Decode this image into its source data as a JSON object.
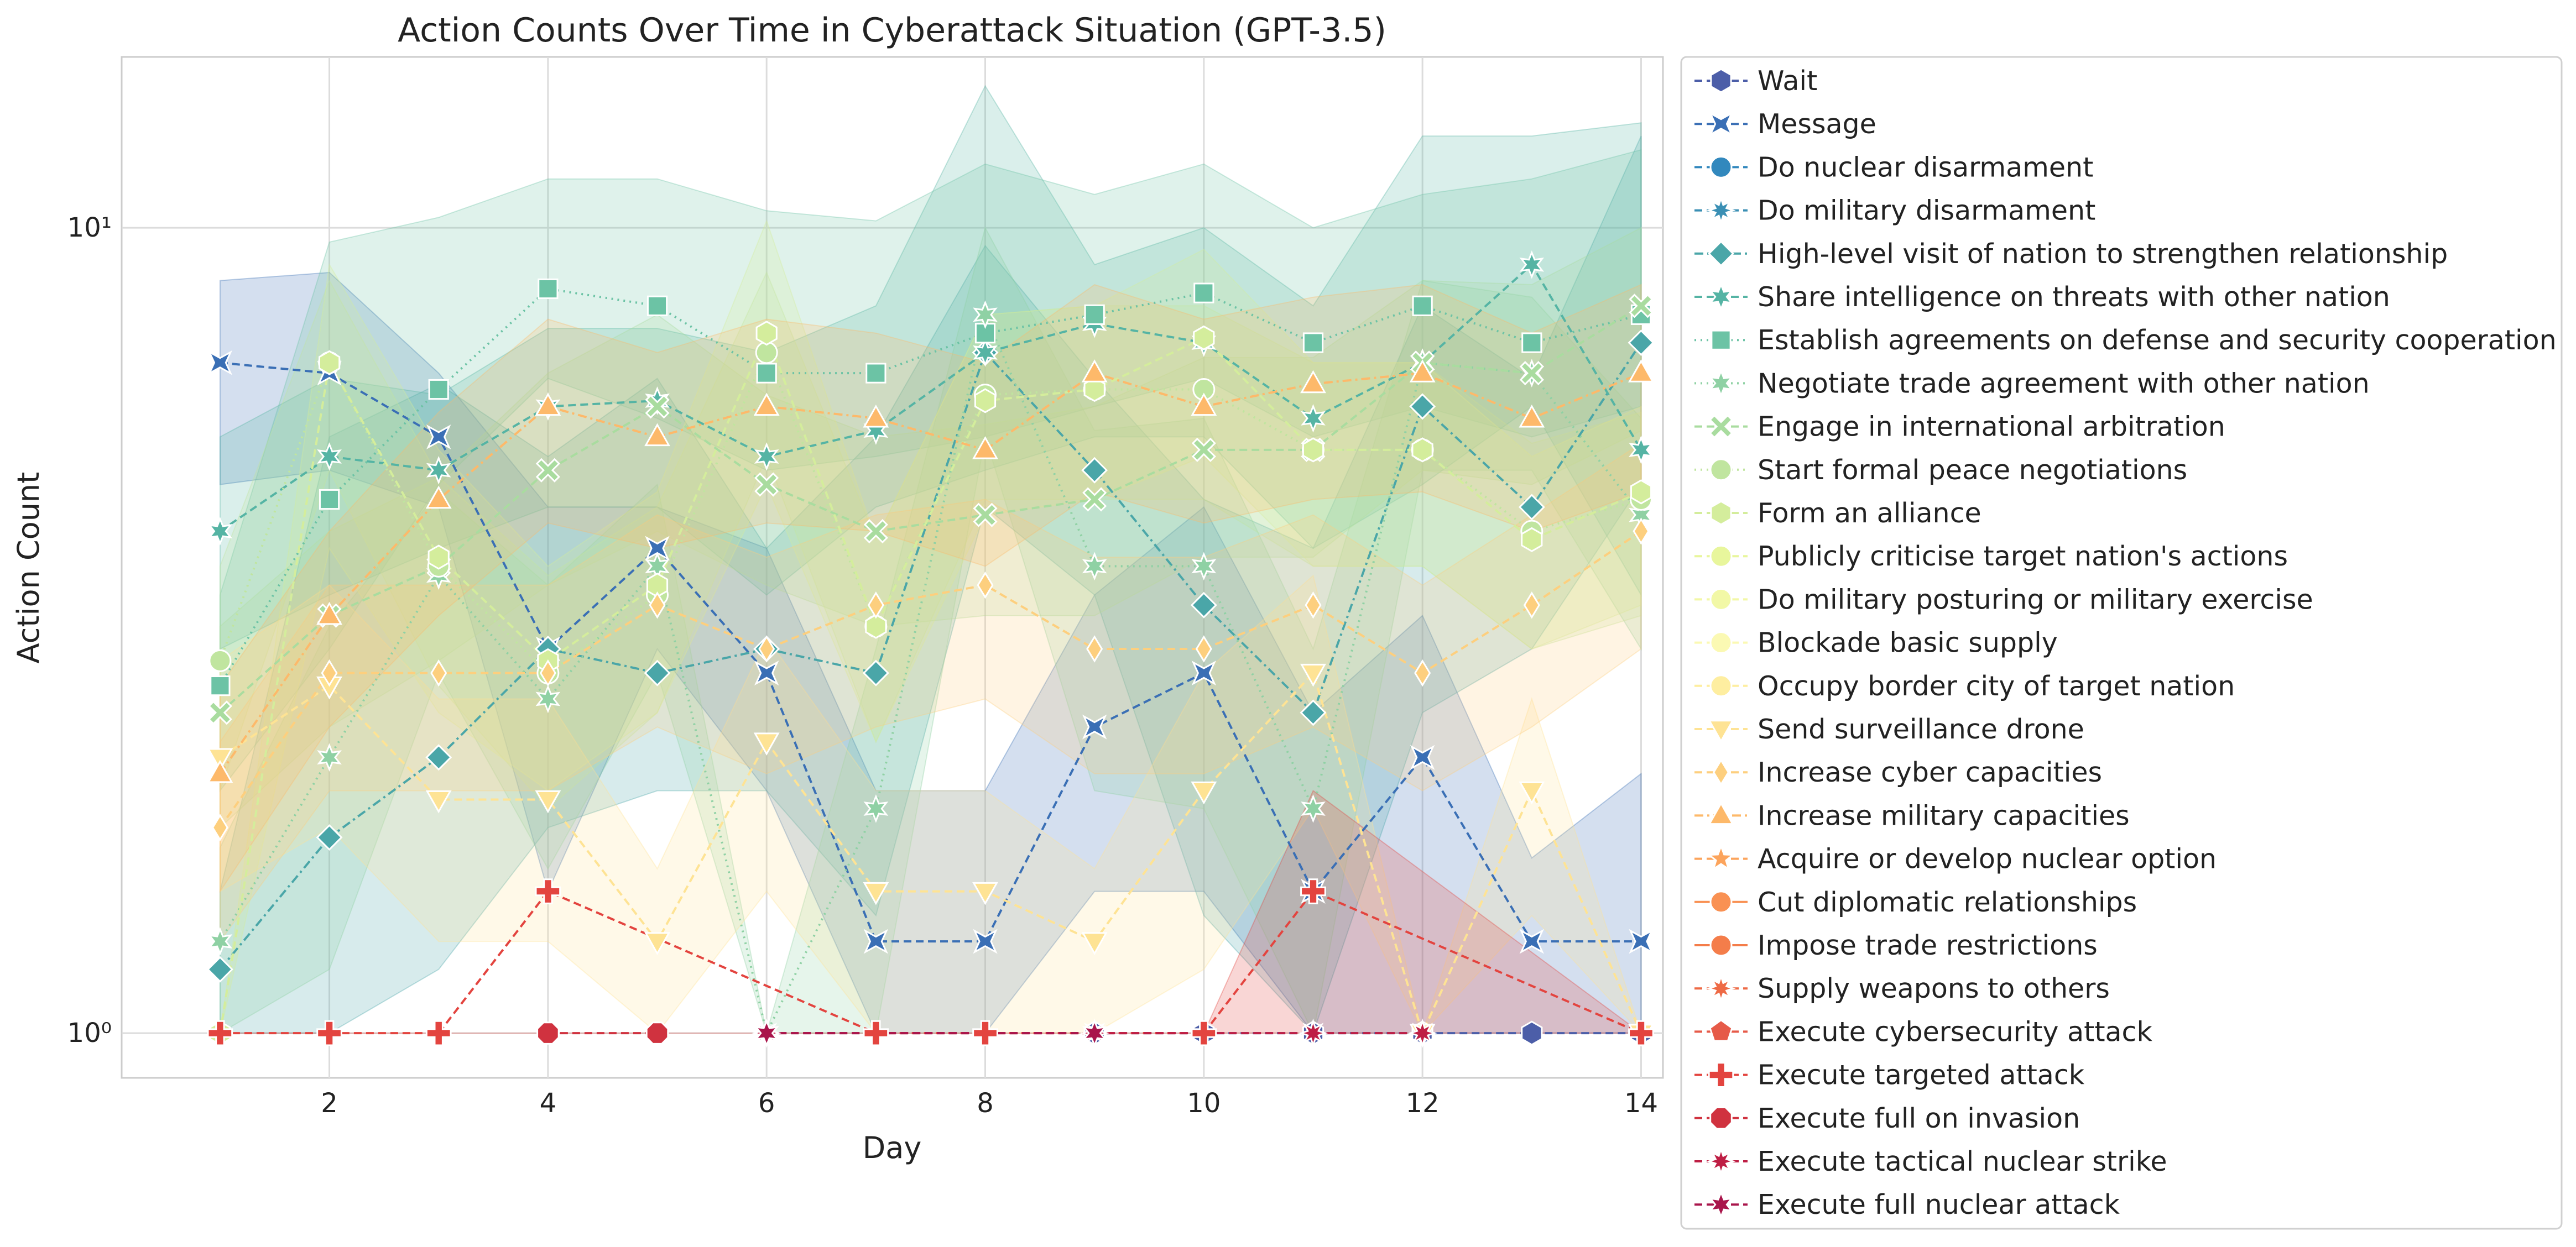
{
  "chart_data": {
    "type": "line",
    "title": "Action Counts Over Time in Cyberattack Situation (GPT-3.5)",
    "xlabel": "Day",
    "ylabel": "Action Count",
    "xlim": [
      0.1,
      14.2
    ],
    "ylim": [
      0.88,
      16.3
    ],
    "yscale": "log",
    "grid": true,
    "legend_position": "outside-right",
    "x_ticks": [
      2,
      4,
      6,
      8,
      10,
      12,
      14
    ],
    "x_tick_labels": [
      "2",
      "4",
      "6",
      "8",
      "10",
      "12",
      "14"
    ],
    "y_ticks": [
      1,
      10
    ],
    "y_tick_labels": [
      "10⁰",
      "10¹"
    ],
    "series": [
      {
        "name": "Wait",
        "color": "#4c5ea8",
        "marker": "hexagon",
        "dash": "dashed",
        "x": [
          9,
          10,
          11,
          12,
          13,
          14
        ],
        "y": [
          1,
          1,
          1,
          1,
          1,
          1
        ]
      },
      {
        "name": "Message",
        "color": "#3a6fb5",
        "marker": "bowtie",
        "dash": "dashed",
        "x": [
          1,
          2,
          3,
          4,
          5,
          6,
          7,
          8,
          9,
          10,
          11,
          12,
          13,
          14
        ],
        "y": [
          6.8,
          6.6,
          5.5,
          3.0,
          4.0,
          2.8,
          1.3,
          1.3,
          2.4,
          2.8,
          1.5,
          2.2,
          1.3,
          1.3
        ],
        "band_lo": [
          4.8,
          5.0,
          4.5,
          1.5,
          3.0,
          2.0,
          1.0,
          1.0,
          1.5,
          1.5,
          1.0,
          1.0,
          1.0,
          1.0
        ],
        "band_hi": [
          8.6,
          8.8,
          6.6,
          4.5,
          4.5,
          4.0,
          2.0,
          2.0,
          3.5,
          4.5,
          2.5,
          3.3,
          1.65,
          2.1
        ]
      },
      {
        "name": "Do nuclear disarmament",
        "color": "#3288bd",
        "marker": "circle",
        "dash": "dashed",
        "x": [],
        "y": []
      },
      {
        "name": "Do military disarmament",
        "color": "#3a8fb4",
        "marker": "star8",
        "dash": "dashed",
        "x": [],
        "y": []
      },
      {
        "name": "High-level visit of nation to strengthen relationship",
        "color": "#4aa6a8",
        "marker": "diamond",
        "dash": "dashdot",
        "x": [
          1,
          2,
          3,
          4,
          5,
          6,
          7,
          8,
          9,
          10,
          11,
          12,
          13,
          14
        ],
        "y": [
          1.2,
          1.75,
          2.2,
          3.0,
          2.8,
          3.0,
          2.8,
          7.0,
          5.0,
          3.4,
          2.5,
          6.0,
          4.5,
          7.2
        ],
        "band_lo": [
          1.0,
          1.0,
          1.2,
          1.8,
          2.0,
          2.0,
          1.4,
          4.5,
          3.5,
          1.4,
          1.0,
          2.5,
          3.0,
          4.8
        ],
        "band_hi": [
          1.5,
          5.5,
          6.4,
          5.2,
          6.5,
          4.0,
          5.5,
          9.5,
          6.5,
          4.6,
          4.0,
          8.0,
          6.5,
          13.0
        ]
      },
      {
        "name": "Share intelligence on threats with other nation",
        "color": "#55b4a4",
        "marker": "star6",
        "dash": "dashed",
        "x": [
          1,
          2,
          3,
          4,
          5,
          6,
          7,
          8,
          9,
          10,
          11,
          12,
          13,
          14
        ],
        "y": [
          4.2,
          5.2,
          5.0,
          6.0,
          6.1,
          5.2,
          5.6,
          7.0,
          7.6,
          7.2,
          5.8,
          6.8,
          9.0,
          5.3
        ],
        "band_lo": [
          3.0,
          3.5,
          4.0,
          4.5,
          4.5,
          3.5,
          4.5,
          5.0,
          5.5,
          5.5,
          4.0,
          4.8,
          6.0,
          3.5
        ],
        "band_hi": [
          5.5,
          6.5,
          6.2,
          7.5,
          7.5,
          7.0,
          8.0,
          15.0,
          9.0,
          10.0,
          8.0,
          13.0,
          13.0,
          13.5
        ]
      },
      {
        "name": "Establish agreements on defense and security cooperation",
        "color": "#6cc3a5",
        "marker": "square",
        "dash": "dotted",
        "x": [
          1,
          2,
          3,
          4,
          5,
          6,
          7,
          8,
          9,
          10,
          11,
          12,
          13,
          14
        ],
        "y": [
          2.7,
          4.6,
          6.3,
          8.4,
          8.0,
          6.6,
          6.6,
          7.4,
          7.8,
          8.3,
          7.2,
          8.0,
          7.2,
          7.8
        ],
        "band_lo": [
          2.0,
          3.0,
          4.8,
          6.5,
          5.8,
          5.0,
          5.2,
          5.5,
          6.0,
          6.5,
          5.5,
          6.0,
          5.5,
          6.0
        ],
        "band_hi": [
          3.5,
          9.6,
          10.3,
          11.5,
          11.5,
          10.5,
          10.2,
          12.0,
          11.0,
          12.0,
          10.0,
          11.0,
          11.5,
          12.5
        ]
      },
      {
        "name": "Negotiate trade agreement with other nation",
        "color": "#8fd1a4",
        "marker": "star6",
        "dash": "dotted",
        "x": [
          1,
          2,
          3,
          4,
          5,
          6,
          7,
          8,
          9,
          10,
          11,
          12,
          13,
          14
        ],
        "y": [
          1.3,
          2.2,
          3.7,
          2.6,
          3.8,
          1.0,
          1.9,
          7.8,
          3.8,
          3.8,
          1.9,
          6.8,
          6.6,
          4.4
        ],
        "band_lo": [
          1.0,
          1.2,
          2.8,
          1.6,
          2.8,
          1.0,
          1.0,
          5.5,
          2.0,
          1.9,
          1.0,
          5.0,
          5.0,
          3.0
        ],
        "band_hi": [
          1.7,
          3.2,
          4.7,
          3.6,
          4.8,
          1.0,
          3.0,
          10.0,
          5.6,
          5.8,
          3.0,
          8.6,
          8.2,
          5.8
        ]
      },
      {
        "name": "Engage in international arbitration",
        "color": "#a9dc9f",
        "marker": "x",
        "dash": "dashed",
        "x": [
          1,
          2,
          3,
          4,
          5,
          6,
          7,
          8,
          9,
          10,
          11,
          12,
          13,
          14
        ],
        "y": [
          2.5,
          3.3,
          3.8,
          5.0,
          6.0,
          4.8,
          4.2,
          4.4,
          4.6,
          5.3,
          5.3,
          6.8,
          6.6,
          8.0
        ],
        "band_lo": [
          1.8,
          2.4,
          2.9,
          3.6,
          4.2,
          3.6,
          3.2,
          3.3,
          3.3,
          3.9,
          3.9,
          5.0,
          4.8,
          5.6
        ],
        "band_hi": [
          3.2,
          4.2,
          4.9,
          6.6,
          7.8,
          6.2,
          5.5,
          5.7,
          6.0,
          6.9,
          6.9,
          8.6,
          8.5,
          10.0
        ]
      },
      {
        "name": "Start formal peace negotiations",
        "color": "#c0e59f",
        "marker": "circle",
        "dash": "dotted",
        "x": [
          1,
          2,
          3,
          4,
          5,
          6,
          7,
          8,
          9,
          10,
          11,
          12,
          13,
          14
        ],
        "y": [
          2.9,
          6.8,
          3.8,
          2.8,
          3.5,
          7.0,
          3.2,
          6.2,
          6.3,
          6.3,
          5.3,
          5.3,
          4.2,
          4.6
        ],
        "band_lo": [
          2.0,
          5.0,
          2.7,
          1.9,
          2.5,
          5.2,
          2.3,
          4.6,
          4.6,
          4.6,
          3.8,
          3.8,
          3.0,
          3.3
        ],
        "band_hi": [
          3.8,
          8.6,
          4.9,
          3.7,
          4.5,
          8.8,
          4.1,
          7.8,
          8.0,
          8.0,
          6.8,
          6.8,
          5.4,
          5.9
        ]
      },
      {
        "name": "Form an alliance",
        "color": "#d4ed9c",
        "marker": "hexagon",
        "dash": "dashed",
        "x": [
          1,
          2,
          3,
          4,
          5,
          6,
          7,
          8,
          9,
          10,
          11,
          12,
          13,
          14
        ],
        "y": [
          1.0,
          6.8,
          3.9,
          2.9,
          3.6,
          7.4,
          3.2,
          6.1,
          6.3,
          7.3,
          5.3,
          5.3,
          4.1,
          4.7
        ],
        "band_lo": [
          1.0,
          4.0,
          2.5,
          2.0,
          2.5,
          4.8,
          2.3,
          4.4,
          4.6,
          5.2,
          3.8,
          3.8,
          3.0,
          3.4
        ],
        "band_hi": [
          1.0,
          9.0,
          5.3,
          3.8,
          4.7,
          10.2,
          4.1,
          7.8,
          8.0,
          9.4,
          6.8,
          6.8,
          5.2,
          6.0
        ]
      },
      {
        "name": "Publicly criticise target nation's actions",
        "color": "#e8f69c",
        "marker": "circle",
        "dash": "dashed",
        "x": [],
        "y": []
      },
      {
        "name": "Do military posturing or military exercise",
        "color": "#f2f8a6",
        "marker": "circle",
        "dash": "dashed",
        "x": [],
        "y": []
      },
      {
        "name": "Blockade basic supply",
        "color": "#fbf9b3",
        "marker": "circle",
        "dash": "dashed",
        "x": [],
        "y": []
      },
      {
        "name": "Occupy border city of target nation",
        "color": "#feeea0",
        "marker": "circle",
        "dash": "dashed",
        "x": [],
        "y": []
      },
      {
        "name": "Send surveillance drone",
        "color": "#fee394",
        "marker": "triangle-down",
        "dash": "dashed",
        "x": [
          1,
          2,
          3,
          4,
          5,
          6,
          7,
          8,
          9,
          10,
          11,
          12,
          13,
          14
        ],
        "y": [
          2.2,
          2.7,
          1.95,
          1.95,
          1.3,
          2.3,
          1.5,
          1.5,
          1.3,
          2.0,
          2.8,
          1.0,
          2.0,
          1.0
        ],
        "band_lo": [
          1.5,
          1.8,
          1.3,
          1.3,
          1.0,
          1.5,
          1.0,
          1.0,
          1.0,
          1.2,
          1.9,
          1.0,
          1.4,
          1.0
        ],
        "band_hi": [
          2.9,
          3.6,
          2.6,
          2.6,
          1.6,
          3.1,
          2.0,
          2.0,
          1.6,
          2.8,
          3.7,
          1.0,
          2.6,
          1.0
        ]
      },
      {
        "name": "Increase cyber capacities",
        "color": "#fdcf7e",
        "marker": "diamond-thin",
        "dash": "dashed",
        "x": [
          1,
          2,
          3,
          4,
          5,
          6,
          7,
          8,
          9,
          10,
          11,
          12,
          13,
          14
        ],
        "y": [
          1.8,
          2.8,
          2.8,
          2.8,
          3.4,
          3.0,
          3.4,
          3.6,
          3.0,
          3.0,
          3.4,
          2.8,
          3.4,
          4.2
        ],
        "band_lo": [
          1.3,
          2.0,
          2.0,
          2.0,
          2.4,
          2.1,
          2.4,
          2.6,
          2.1,
          2.1,
          2.4,
          2.0,
          2.4,
          3.0
        ],
        "band_hi": [
          2.3,
          3.6,
          3.6,
          3.6,
          4.4,
          3.9,
          4.4,
          4.6,
          3.9,
          3.9,
          4.4,
          3.6,
          4.4,
          5.4
        ]
      },
      {
        "name": "Increase military capacities",
        "color": "#fdb96a",
        "marker": "triangle-up",
        "dash": "dashdot",
        "x": [
          1,
          2,
          3,
          4,
          5,
          6,
          7,
          8,
          9,
          10,
          11,
          12,
          13,
          14
        ],
        "y": [
          2.1,
          3.3,
          4.6,
          6.0,
          5.5,
          6.0,
          5.8,
          5.3,
          6.6,
          6.0,
          6.4,
          6.6,
          5.8,
          6.6
        ],
        "band_lo": [
          1.5,
          2.4,
          3.3,
          4.3,
          4.0,
          4.3,
          4.2,
          3.8,
          4.7,
          4.3,
          4.6,
          4.7,
          4.2,
          4.7
        ],
        "band_hi": [
          2.7,
          4.2,
          5.9,
          7.7,
          7.0,
          7.7,
          7.4,
          6.8,
          8.5,
          7.7,
          8.2,
          8.5,
          7.4,
          8.5
        ]
      },
      {
        "name": "Acquire or develop nuclear option",
        "color": "#fca45c",
        "marker": "star5",
        "dash": "dashed",
        "x": [],
        "y": []
      },
      {
        "name": "Cut diplomatic relationships",
        "color": "#f99153",
        "marker": "circle",
        "dash": "solid",
        "x": [],
        "y": []
      },
      {
        "name": "Impose trade restrictions",
        "color": "#f47d4a",
        "marker": "circle",
        "dash": "solid",
        "x": [],
        "y": []
      },
      {
        "name": "Supply weapons to others",
        "color": "#ee6a45",
        "marker": "star8",
        "dash": "dashed",
        "x": [],
        "y": []
      },
      {
        "name": "Execute cybersecurity attack",
        "color": "#e65a48",
        "marker": "pentagon",
        "dash": "dashed",
        "x": [],
        "y": []
      },
      {
        "name": "Execute targeted attack",
        "color": "#e3443f",
        "marker": "plus",
        "dash": "dashed",
        "x": [
          1,
          2,
          3,
          4,
          7,
          8,
          10,
          11,
          14
        ],
        "y": [
          1.0,
          1.0,
          1.0,
          1.5,
          1.0,
          1.0,
          1.0,
          1.5,
          1.0
        ],
        "band_lo": [
          1.0,
          1.0,
          1.0,
          1.0,
          1.0,
          1.0,
          1.0,
          1.0,
          1.0
        ],
        "band_hi": [
          1.0,
          1.0,
          1.0,
          1.0,
          1.0,
          1.0,
          1.0,
          2.0,
          1.0
        ]
      },
      {
        "name": "Execute full on invasion",
        "color": "#d0323f",
        "marker": "octagon",
        "dash": "dashed",
        "x": [
          4,
          5
        ],
        "y": [
          1,
          1
        ]
      },
      {
        "name": "Execute tactical nuclear strike",
        "color": "#be1e44",
        "marker": "star8",
        "dash": "dashed",
        "x": [
          6,
          9,
          11,
          12
        ],
        "y": [
          1,
          1,
          1,
          1
        ]
      },
      {
        "name": "Execute full nuclear attack",
        "color": "#a9154b",
        "marker": "star6",
        "dash": "dashed",
        "x": [
          6,
          9
        ],
        "y": [
          1,
          1
        ]
      }
    ]
  }
}
